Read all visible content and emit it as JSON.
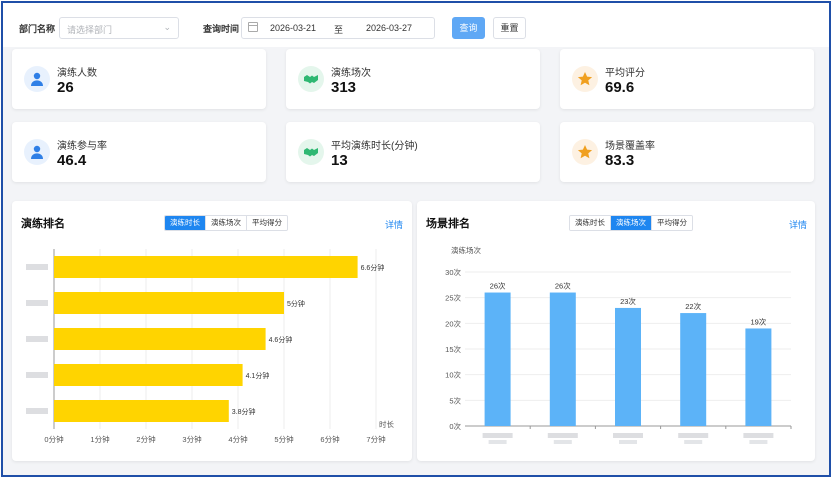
{
  "filter": {
    "dept_label": "部门名称",
    "dept_placeholder": "请选择部门",
    "time_label": "查询时间",
    "date_start": "2026-03-21",
    "date_sep": "至",
    "date_end": "2026-03-27",
    "query_label": "查询",
    "reset_label": "重置"
  },
  "stats": [
    {
      "label": "演练人数",
      "value": "26",
      "icon": "person-icon",
      "color": "#2f7fe6"
    },
    {
      "label": "演练场次",
      "value": "313",
      "icon": "handshake-icon",
      "color": "#2eb872"
    },
    {
      "label": "平均评分",
      "value": "69.6",
      "icon": "star-icon",
      "color": "#f0a020"
    },
    {
      "label": "演练参与率",
      "value": "46.4",
      "icon": "person-icon",
      "color": "#2f7fe6"
    },
    {
      "label": "平均演练时长(分钟)",
      "value": "13",
      "icon": "handshake-icon",
      "color": "#2eb872"
    },
    {
      "label": "场景覆盖率",
      "value": "83.3",
      "icon": "star-icon",
      "color": "#f0a020"
    }
  ],
  "left_panel": {
    "title": "演练排名",
    "tabs": [
      "演练时长",
      "演练场次",
      "平均得分"
    ],
    "active_tab": 0,
    "detail_label": "详情"
  },
  "right_panel": {
    "title": "场景排名",
    "tabs": [
      "演练时长",
      "演练场次",
      "平均得分"
    ],
    "active_tab": 1,
    "detail_label": "详情"
  },
  "chart_data": [
    {
      "type": "bar",
      "orientation": "horizontal",
      "categories": [
        "",
        "",
        "",
        "",
        ""
      ],
      "values": [
        6.6,
        5,
        4.6,
        4.1,
        3.8
      ],
      "data_labels": [
        "6.6分钟",
        "5分钟",
        "4.6分钟",
        "4.1分钟",
        "3.8分钟"
      ],
      "x_ticks": [
        "0分钟",
        "1分钟",
        "2分钟",
        "3分钟",
        "4分钟",
        "5分钟",
        "6分钟",
        "7分钟"
      ],
      "xlim": [
        0,
        7
      ],
      "xlabel": "时长",
      "bar_color": "#ffd400",
      "grid": true
    },
    {
      "type": "bar",
      "categories": [
        "",
        "",
        "",
        "",
        ""
      ],
      "values": [
        26,
        26,
        23,
        22,
        19
      ],
      "data_labels": [
        "26次",
        "26次",
        "23次",
        "22次",
        "19次"
      ],
      "y_ticks": [
        "0次",
        "5次",
        "10次",
        "15次",
        "20次",
        "25次",
        "30次"
      ],
      "ylim": [
        0,
        30
      ],
      "ylabel": "演练场次",
      "bar_color": "#5cb3f8",
      "grid": true
    }
  ]
}
